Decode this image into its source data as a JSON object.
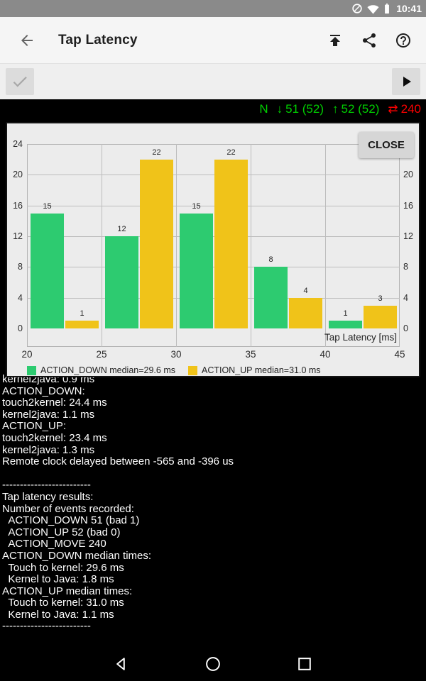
{
  "status_bar": {
    "time": "10:41"
  },
  "app_bar": {
    "title": "Tap Latency"
  },
  "counter_bar": {
    "prefix": "N",
    "down_icon": "↓",
    "down_count": "51 (52)",
    "up_icon": "↑",
    "up_count": "52 (52)",
    "moves_icon": "⇄",
    "move_count": "240",
    "ok_color": "#00d000",
    "alert_color": "#ff0000"
  },
  "chart": {
    "close_label": "CLOSE"
  },
  "chart_data": {
    "type": "bar",
    "title": "",
    "xlabel": "Tap Latency [ms]",
    "ylabel": "",
    "xlim": [
      20,
      45
    ],
    "ylim": [
      0,
      24
    ],
    "x_ticks": [
      20,
      25,
      30,
      35,
      40,
      45
    ],
    "y_ticks": [
      0,
      4,
      8,
      12,
      16,
      20,
      24
    ],
    "bin_edges": [
      20,
      25,
      30,
      35,
      40,
      45
    ],
    "grid": true,
    "legend_position": "bottom-left",
    "series": [
      {
        "name": "ACTION_DOWN median=29.6 ms",
        "color": "#2dcb70",
        "values": [
          15,
          12,
          15,
          8,
          1
        ]
      },
      {
        "name": "ACTION_UP median=31.0 ms",
        "color": "#f0c319",
        "values": [
          1,
          22,
          22,
          4,
          3
        ]
      }
    ]
  },
  "terminal": {
    "lines": [
      "kernel2java: 0.9 ms",
      "ACTION_DOWN:",
      "touch2kernel: 24.4 ms",
      "kernel2java: 1.1 ms",
      "ACTION_UP:",
      "touch2kernel: 23.4 ms",
      "kernel2java: 1.3 ms",
      "Remote clock delayed between -565 and -396 us",
      "",
      "-------------------------",
      "Tap latency results:",
      "Number of events recorded:",
      "  ACTION_DOWN 51 (bad 1)",
      "  ACTION_UP 52 (bad 0)",
      "  ACTION_MOVE 240",
      "ACTION_DOWN median times:",
      "  Touch to kernel: 29.6 ms",
      "  Kernel to Java: 1.8 ms",
      "ACTION_UP median times:",
      "  Touch to kernel: 31.0 ms",
      "  Kernel to Java: 1.1 ms",
      "-------------------------"
    ]
  }
}
